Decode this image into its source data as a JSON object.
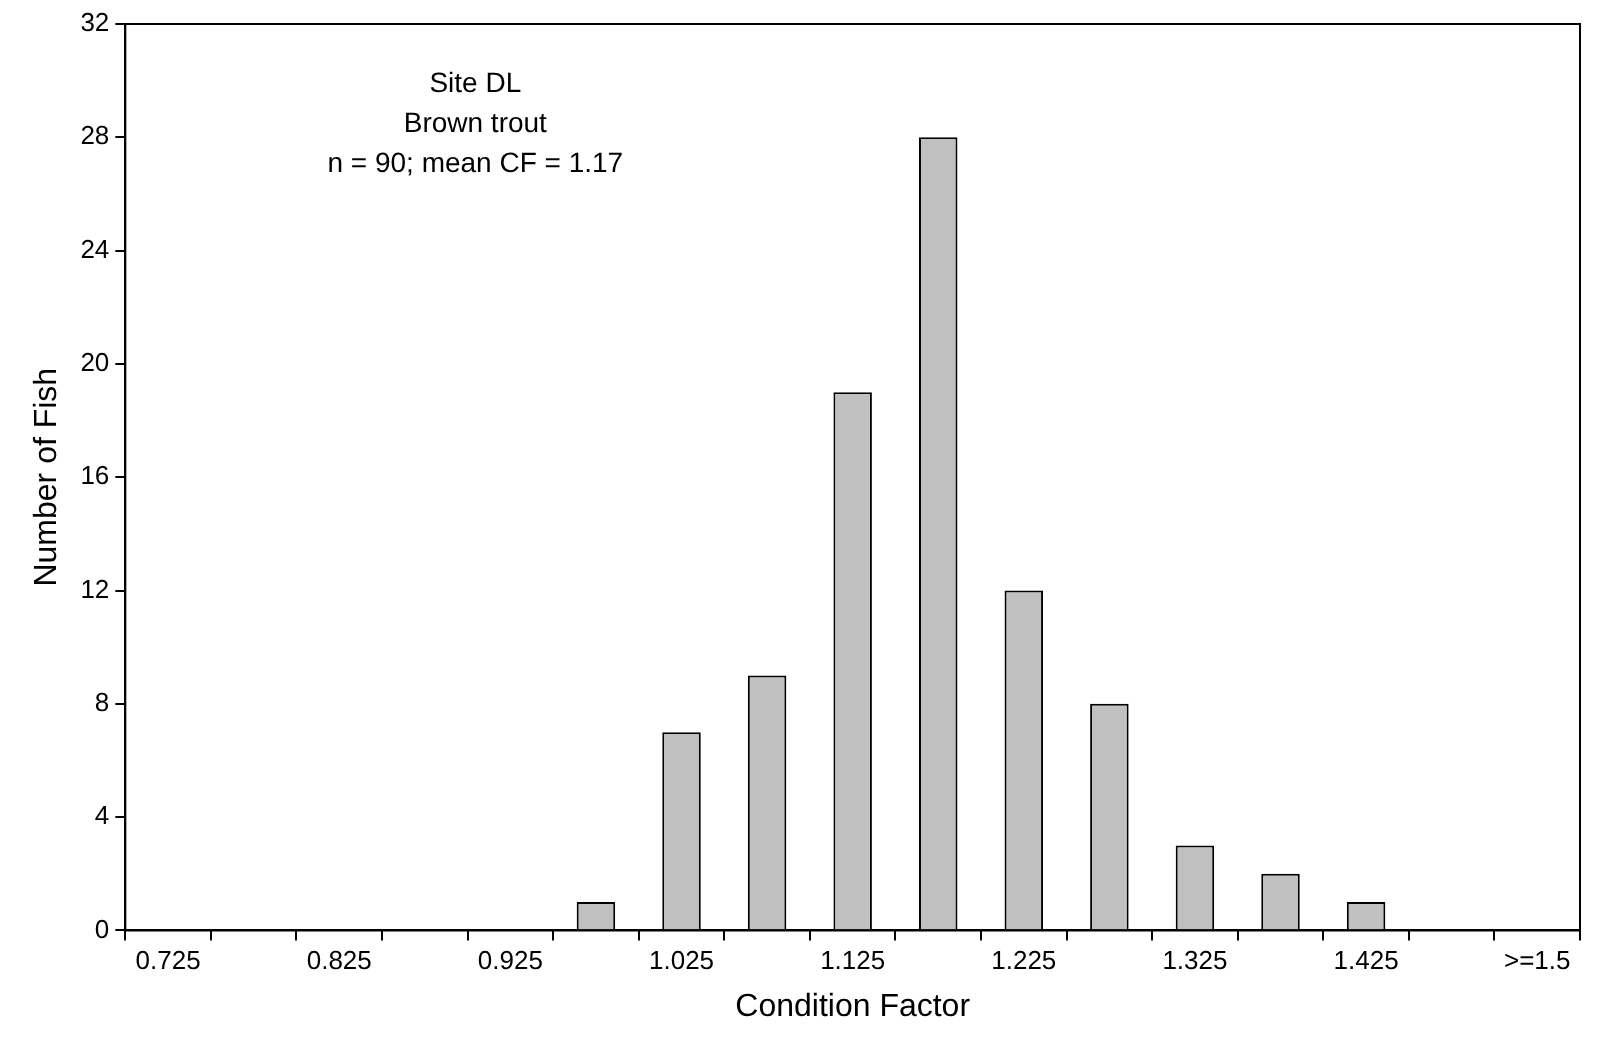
{
  "chart_data": {
    "type": "bar",
    "xlabel": "Condition Factor",
    "ylabel": "Number of Fish",
    "categories": [
      "0.725",
      null,
      "0.825",
      null,
      "0.925",
      null,
      "1.025",
      null,
      "1.125",
      null,
      "1.225",
      null,
      "1.325",
      null,
      "1.425",
      null,
      ">=1.5"
    ],
    "values": [
      0,
      0,
      0,
      0,
      0,
      1,
      7,
      9,
      19,
      28,
      12,
      8,
      3,
      2,
      1,
      0,
      0
    ],
    "color": "#c0c0c0",
    "ylim": [
      0,
      32
    ],
    "yticks": [
      0,
      4,
      8,
      12,
      16,
      20,
      24,
      28,
      32
    ],
    "grid": false,
    "legend": false,
    "annotations": [
      "Site DL",
      "Brown trout",
      "n = 90; mean CF = 1.17"
    ]
  }
}
